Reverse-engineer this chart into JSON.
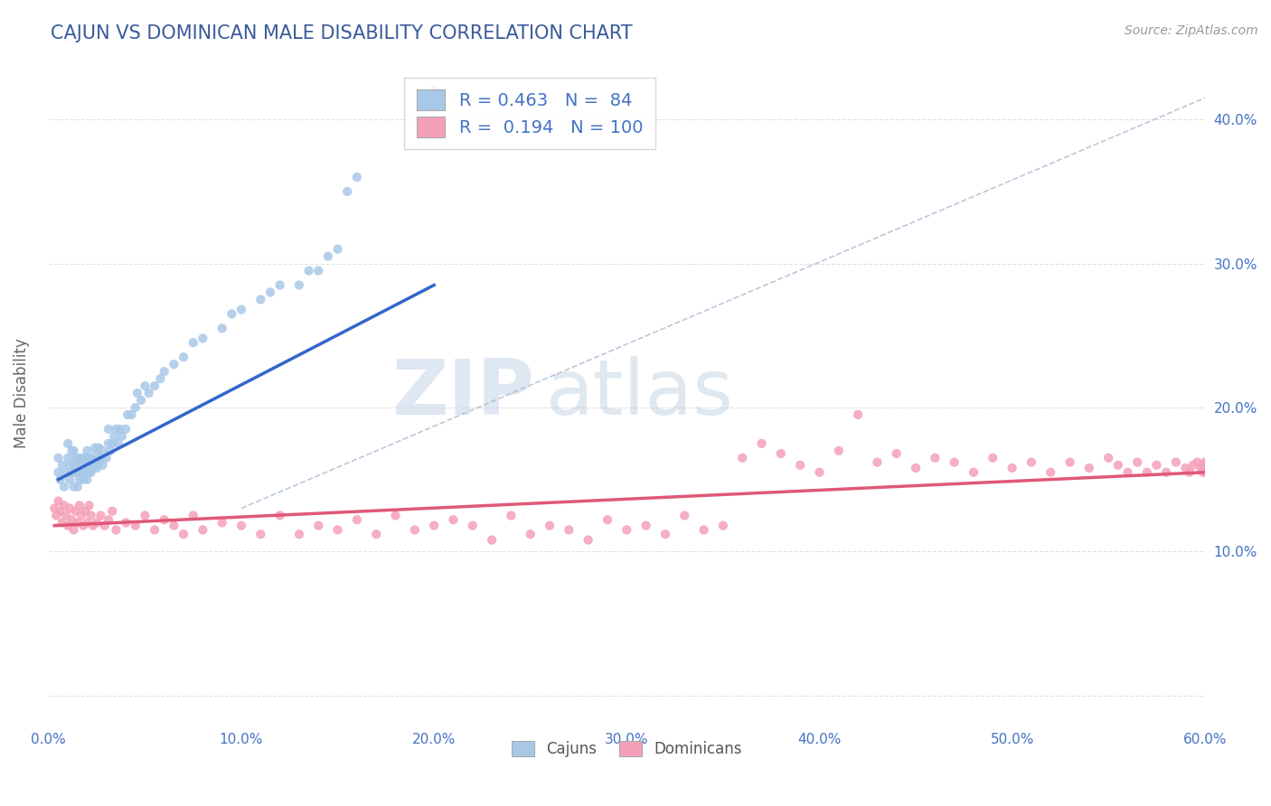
{
  "title": "CAJUN VS DOMINICAN MALE DISABILITY CORRELATION CHART",
  "source_text": "Source: ZipAtlas.com",
  "ylabel": "Male Disability",
  "xlim": [
    0.0,
    0.6
  ],
  "ylim": [
    -0.02,
    0.44
  ],
  "xtick_vals": [
    0.0,
    0.1,
    0.2,
    0.3,
    0.4,
    0.5,
    0.6
  ],
  "xtick_labels": [
    "0.0%",
    "10.0%",
    "20.0%",
    "30.0%",
    "40.0%",
    "50.0%",
    "60.0%"
  ],
  "ytick_vals": [
    0.0,
    0.1,
    0.2,
    0.3,
    0.4
  ],
  "ytick_labels": [
    "",
    "10.0%",
    "20.0%",
    "30.0%",
    "40.0%"
  ],
  "cajun_color": "#a8c8e8",
  "dominican_color": "#f4a0b8",
  "cajun_line_color": "#3366cc",
  "dominican_line_color": "#e05878",
  "R_cajun": 0.463,
  "N_cajun": 84,
  "R_dominican": 0.194,
  "N_dominican": 100,
  "watermark": "ZIPatlas",
  "watermark_color": "#c8d8ea",
  "title_color": "#3a5a9a",
  "axis_label_color": "#666666",
  "tick_label_color": "#4472c4",
  "grid_color": "#dddddd",
  "cajun_scatter_x": [
    0.005,
    0.005,
    0.006,
    0.007,
    0.008,
    0.009,
    0.01,
    0.01,
    0.011,
    0.011,
    0.012,
    0.012,
    0.013,
    0.013,
    0.013,
    0.014,
    0.014,
    0.015,
    0.015,
    0.015,
    0.016,
    0.016,
    0.017,
    0.017,
    0.018,
    0.018,
    0.019,
    0.019,
    0.02,
    0.02,
    0.02,
    0.021,
    0.021,
    0.022,
    0.022,
    0.023,
    0.024,
    0.024,
    0.025,
    0.025,
    0.026,
    0.026,
    0.027,
    0.028,
    0.028,
    0.03,
    0.031,
    0.031,
    0.032,
    0.033,
    0.034,
    0.035,
    0.036,
    0.037,
    0.038,
    0.04,
    0.041,
    0.043,
    0.045,
    0.046,
    0.048,
    0.05,
    0.052,
    0.055,
    0.058,
    0.06,
    0.065,
    0.07,
    0.075,
    0.08,
    0.09,
    0.095,
    0.1,
    0.11,
    0.115,
    0.12,
    0.13,
    0.135,
    0.14,
    0.145,
    0.15,
    0.155,
    0.16,
    0.2
  ],
  "cajun_scatter_y": [
    0.155,
    0.165,
    0.15,
    0.16,
    0.145,
    0.155,
    0.165,
    0.175,
    0.15,
    0.16,
    0.17,
    0.155,
    0.145,
    0.16,
    0.17,
    0.155,
    0.165,
    0.145,
    0.155,
    0.165,
    0.15,
    0.16,
    0.155,
    0.165,
    0.15,
    0.16,
    0.155,
    0.165,
    0.15,
    0.16,
    0.17,
    0.155,
    0.165,
    0.155,
    0.165,
    0.158,
    0.162,
    0.172,
    0.158,
    0.168,
    0.162,
    0.172,
    0.165,
    0.16,
    0.17,
    0.165,
    0.175,
    0.185,
    0.17,
    0.175,
    0.18,
    0.185,
    0.175,
    0.185,
    0.18,
    0.185,
    0.195,
    0.195,
    0.2,
    0.21,
    0.205,
    0.215,
    0.21,
    0.215,
    0.22,
    0.225,
    0.23,
    0.235,
    0.245,
    0.248,
    0.255,
    0.265,
    0.268,
    0.275,
    0.28,
    0.285,
    0.285,
    0.295,
    0.295,
    0.305,
    0.31,
    0.35,
    0.36,
    0.42
  ],
  "dominican_scatter_x": [
    0.003,
    0.004,
    0.005,
    0.006,
    0.007,
    0.008,
    0.009,
    0.01,
    0.011,
    0.012,
    0.013,
    0.014,
    0.015,
    0.016,
    0.017,
    0.018,
    0.019,
    0.02,
    0.021,
    0.022,
    0.023,
    0.025,
    0.027,
    0.029,
    0.031,
    0.033,
    0.035,
    0.04,
    0.045,
    0.05,
    0.055,
    0.06,
    0.065,
    0.07,
    0.075,
    0.08,
    0.09,
    0.1,
    0.11,
    0.12,
    0.13,
    0.14,
    0.15,
    0.16,
    0.17,
    0.18,
    0.19,
    0.2,
    0.21,
    0.22,
    0.23,
    0.24,
    0.25,
    0.26,
    0.27,
    0.28,
    0.29,
    0.3,
    0.31,
    0.32,
    0.33,
    0.34,
    0.35,
    0.36,
    0.37,
    0.38,
    0.39,
    0.4,
    0.41,
    0.42,
    0.43,
    0.44,
    0.45,
    0.46,
    0.47,
    0.48,
    0.49,
    0.5,
    0.51,
    0.52,
    0.53,
    0.54,
    0.55,
    0.555,
    0.56,
    0.565,
    0.57,
    0.575,
    0.58,
    0.585,
    0.59,
    0.592,
    0.594,
    0.596,
    0.598,
    0.599,
    0.599,
    0.6,
    0.6,
    0.6
  ],
  "dominican_scatter_y": [
    0.13,
    0.125,
    0.135,
    0.128,
    0.12,
    0.132,
    0.125,
    0.118,
    0.13,
    0.122,
    0.115,
    0.128,
    0.12,
    0.132,
    0.125,
    0.118,
    0.128,
    0.12,
    0.132,
    0.125,
    0.118,
    0.12,
    0.125,
    0.118,
    0.122,
    0.128,
    0.115,
    0.12,
    0.118,
    0.125,
    0.115,
    0.122,
    0.118,
    0.112,
    0.125,
    0.115,
    0.12,
    0.118,
    0.112,
    0.125,
    0.112,
    0.118,
    0.115,
    0.122,
    0.112,
    0.125,
    0.115,
    0.118,
    0.122,
    0.118,
    0.108,
    0.125,
    0.112,
    0.118,
    0.115,
    0.108,
    0.122,
    0.115,
    0.118,
    0.112,
    0.125,
    0.115,
    0.118,
    0.165,
    0.175,
    0.168,
    0.16,
    0.155,
    0.17,
    0.195,
    0.162,
    0.168,
    0.158,
    0.165,
    0.162,
    0.155,
    0.165,
    0.158,
    0.162,
    0.155,
    0.162,
    0.158,
    0.165,
    0.16,
    0.155,
    0.162,
    0.155,
    0.16,
    0.155,
    0.162,
    0.158,
    0.155,
    0.16,
    0.162,
    0.158,
    0.155,
    0.16,
    0.155,
    0.162,
    0.158
  ],
  "cajun_trend_x": [
    0.005,
    0.2
  ],
  "cajun_trend_y": [
    0.15,
    0.285
  ],
  "dominican_trend_x": [
    0.003,
    0.6
  ],
  "dominican_trend_y": [
    0.118,
    0.155
  ],
  "dashed_line_x": [
    0.1,
    0.6
  ],
  "dashed_line_y": [
    0.13,
    0.415
  ]
}
